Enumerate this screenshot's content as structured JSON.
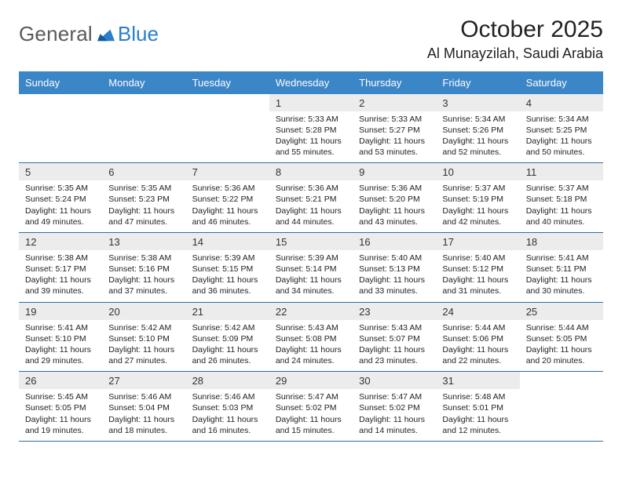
{
  "brand": {
    "general": "General",
    "blue": "Blue"
  },
  "title": "October 2025",
  "location": "Al Munayzilah, Saudi Arabia",
  "colors": {
    "header_bg": "#3b86c7",
    "header_text": "#ffffff",
    "daynum_bg": "#ececec",
    "rule": "#2a6fa9",
    "logo_gray": "#5a5a5a",
    "logo_blue": "#2a7fc9"
  },
  "daynames": [
    "Sunday",
    "Monday",
    "Tuesday",
    "Wednesday",
    "Thursday",
    "Friday",
    "Saturday"
  ],
  "weeks": [
    [
      {
        "blank": true,
        "n": "",
        "sunrise": "",
        "sunset": "",
        "daylight1": "",
        "daylight2": ""
      },
      {
        "blank": true,
        "n": "",
        "sunrise": "",
        "sunset": "",
        "daylight1": "",
        "daylight2": ""
      },
      {
        "blank": true,
        "n": "",
        "sunrise": "",
        "sunset": "",
        "daylight1": "",
        "daylight2": ""
      },
      {
        "n": "1",
        "sunrise": "Sunrise: 5:33 AM",
        "sunset": "Sunset: 5:28 PM",
        "daylight1": "Daylight: 11 hours",
        "daylight2": "and 55 minutes."
      },
      {
        "n": "2",
        "sunrise": "Sunrise: 5:33 AM",
        "sunset": "Sunset: 5:27 PM",
        "daylight1": "Daylight: 11 hours",
        "daylight2": "and 53 minutes."
      },
      {
        "n": "3",
        "sunrise": "Sunrise: 5:34 AM",
        "sunset": "Sunset: 5:26 PM",
        "daylight1": "Daylight: 11 hours",
        "daylight2": "and 52 minutes."
      },
      {
        "n": "4",
        "sunrise": "Sunrise: 5:34 AM",
        "sunset": "Sunset: 5:25 PM",
        "daylight1": "Daylight: 11 hours",
        "daylight2": "and 50 minutes."
      }
    ],
    [
      {
        "n": "5",
        "sunrise": "Sunrise: 5:35 AM",
        "sunset": "Sunset: 5:24 PM",
        "daylight1": "Daylight: 11 hours",
        "daylight2": "and 49 minutes."
      },
      {
        "n": "6",
        "sunrise": "Sunrise: 5:35 AM",
        "sunset": "Sunset: 5:23 PM",
        "daylight1": "Daylight: 11 hours",
        "daylight2": "and 47 minutes."
      },
      {
        "n": "7",
        "sunrise": "Sunrise: 5:36 AM",
        "sunset": "Sunset: 5:22 PM",
        "daylight1": "Daylight: 11 hours",
        "daylight2": "and 46 minutes."
      },
      {
        "n": "8",
        "sunrise": "Sunrise: 5:36 AM",
        "sunset": "Sunset: 5:21 PM",
        "daylight1": "Daylight: 11 hours",
        "daylight2": "and 44 minutes."
      },
      {
        "n": "9",
        "sunrise": "Sunrise: 5:36 AM",
        "sunset": "Sunset: 5:20 PM",
        "daylight1": "Daylight: 11 hours",
        "daylight2": "and 43 minutes."
      },
      {
        "n": "10",
        "sunrise": "Sunrise: 5:37 AM",
        "sunset": "Sunset: 5:19 PM",
        "daylight1": "Daylight: 11 hours",
        "daylight2": "and 42 minutes."
      },
      {
        "n": "11",
        "sunrise": "Sunrise: 5:37 AM",
        "sunset": "Sunset: 5:18 PM",
        "daylight1": "Daylight: 11 hours",
        "daylight2": "and 40 minutes."
      }
    ],
    [
      {
        "n": "12",
        "sunrise": "Sunrise: 5:38 AM",
        "sunset": "Sunset: 5:17 PM",
        "daylight1": "Daylight: 11 hours",
        "daylight2": "and 39 minutes."
      },
      {
        "n": "13",
        "sunrise": "Sunrise: 5:38 AM",
        "sunset": "Sunset: 5:16 PM",
        "daylight1": "Daylight: 11 hours",
        "daylight2": "and 37 minutes."
      },
      {
        "n": "14",
        "sunrise": "Sunrise: 5:39 AM",
        "sunset": "Sunset: 5:15 PM",
        "daylight1": "Daylight: 11 hours",
        "daylight2": "and 36 minutes."
      },
      {
        "n": "15",
        "sunrise": "Sunrise: 5:39 AM",
        "sunset": "Sunset: 5:14 PM",
        "daylight1": "Daylight: 11 hours",
        "daylight2": "and 34 minutes."
      },
      {
        "n": "16",
        "sunrise": "Sunrise: 5:40 AM",
        "sunset": "Sunset: 5:13 PM",
        "daylight1": "Daylight: 11 hours",
        "daylight2": "and 33 minutes."
      },
      {
        "n": "17",
        "sunrise": "Sunrise: 5:40 AM",
        "sunset": "Sunset: 5:12 PM",
        "daylight1": "Daylight: 11 hours",
        "daylight2": "and 31 minutes."
      },
      {
        "n": "18",
        "sunrise": "Sunrise: 5:41 AM",
        "sunset": "Sunset: 5:11 PM",
        "daylight1": "Daylight: 11 hours",
        "daylight2": "and 30 minutes."
      }
    ],
    [
      {
        "n": "19",
        "sunrise": "Sunrise: 5:41 AM",
        "sunset": "Sunset: 5:10 PM",
        "daylight1": "Daylight: 11 hours",
        "daylight2": "and 29 minutes."
      },
      {
        "n": "20",
        "sunrise": "Sunrise: 5:42 AM",
        "sunset": "Sunset: 5:10 PM",
        "daylight1": "Daylight: 11 hours",
        "daylight2": "and 27 minutes."
      },
      {
        "n": "21",
        "sunrise": "Sunrise: 5:42 AM",
        "sunset": "Sunset: 5:09 PM",
        "daylight1": "Daylight: 11 hours",
        "daylight2": "and 26 minutes."
      },
      {
        "n": "22",
        "sunrise": "Sunrise: 5:43 AM",
        "sunset": "Sunset: 5:08 PM",
        "daylight1": "Daylight: 11 hours",
        "daylight2": "and 24 minutes."
      },
      {
        "n": "23",
        "sunrise": "Sunrise: 5:43 AM",
        "sunset": "Sunset: 5:07 PM",
        "daylight1": "Daylight: 11 hours",
        "daylight2": "and 23 minutes."
      },
      {
        "n": "24",
        "sunrise": "Sunrise: 5:44 AM",
        "sunset": "Sunset: 5:06 PM",
        "daylight1": "Daylight: 11 hours",
        "daylight2": "and 22 minutes."
      },
      {
        "n": "25",
        "sunrise": "Sunrise: 5:44 AM",
        "sunset": "Sunset: 5:05 PM",
        "daylight1": "Daylight: 11 hours",
        "daylight2": "and 20 minutes."
      }
    ],
    [
      {
        "n": "26",
        "sunrise": "Sunrise: 5:45 AM",
        "sunset": "Sunset: 5:05 PM",
        "daylight1": "Daylight: 11 hours",
        "daylight2": "and 19 minutes."
      },
      {
        "n": "27",
        "sunrise": "Sunrise: 5:46 AM",
        "sunset": "Sunset: 5:04 PM",
        "daylight1": "Daylight: 11 hours",
        "daylight2": "and 18 minutes."
      },
      {
        "n": "28",
        "sunrise": "Sunrise: 5:46 AM",
        "sunset": "Sunset: 5:03 PM",
        "daylight1": "Daylight: 11 hours",
        "daylight2": "and 16 minutes."
      },
      {
        "n": "29",
        "sunrise": "Sunrise: 5:47 AM",
        "sunset": "Sunset: 5:02 PM",
        "daylight1": "Daylight: 11 hours",
        "daylight2": "and 15 minutes."
      },
      {
        "n": "30",
        "sunrise": "Sunrise: 5:47 AM",
        "sunset": "Sunset: 5:02 PM",
        "daylight1": "Daylight: 11 hours",
        "daylight2": "and 14 minutes."
      },
      {
        "n": "31",
        "sunrise": "Sunrise: 5:48 AM",
        "sunset": "Sunset: 5:01 PM",
        "daylight1": "Daylight: 11 hours",
        "daylight2": "and 12 minutes."
      },
      {
        "blank": true,
        "n": "",
        "sunrise": "",
        "sunset": "",
        "daylight1": "",
        "daylight2": ""
      }
    ]
  ]
}
